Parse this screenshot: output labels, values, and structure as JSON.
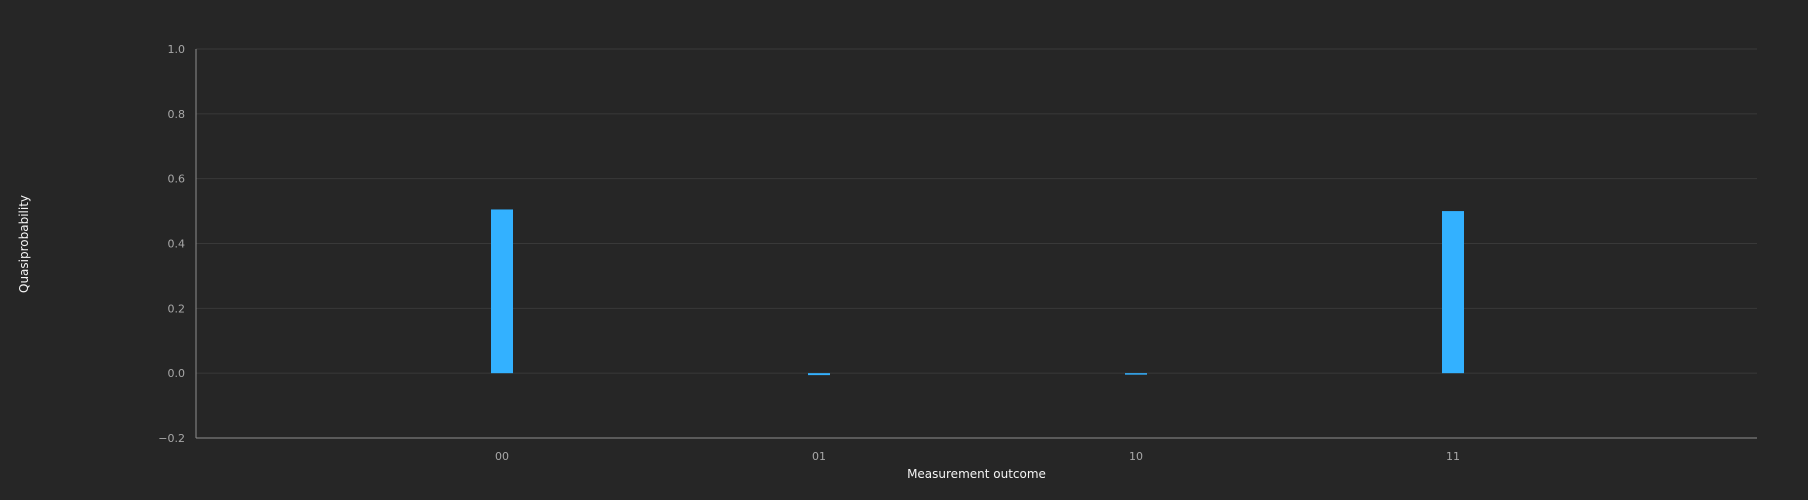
{
  "chart_data": {
    "type": "bar",
    "title": "",
    "xlabel": "Measurement outcome",
    "ylabel": "Quasiprobability",
    "categories": [
      "00",
      "01",
      "10",
      "11"
    ],
    "values": [
      0.505,
      -0.006,
      -0.003,
      0.5
    ],
    "ylim": [
      -0.2,
      1.0
    ],
    "yticks": [
      -0.2,
      0.0,
      0.2,
      0.4,
      0.6,
      0.8,
      1.0
    ],
    "ytick_labels": [
      "−0.2",
      "0.0",
      "0.2",
      "0.4",
      "0.6",
      "0.8",
      "1.0"
    ],
    "grid": true,
    "legend": "none",
    "colors": {
      "background": "#262626",
      "bar": "#33b1ff",
      "grid": "#393939",
      "axis": "#8d8d8d",
      "tick_text": "#a8a8a8",
      "label_text": "#f4f4f4"
    }
  }
}
